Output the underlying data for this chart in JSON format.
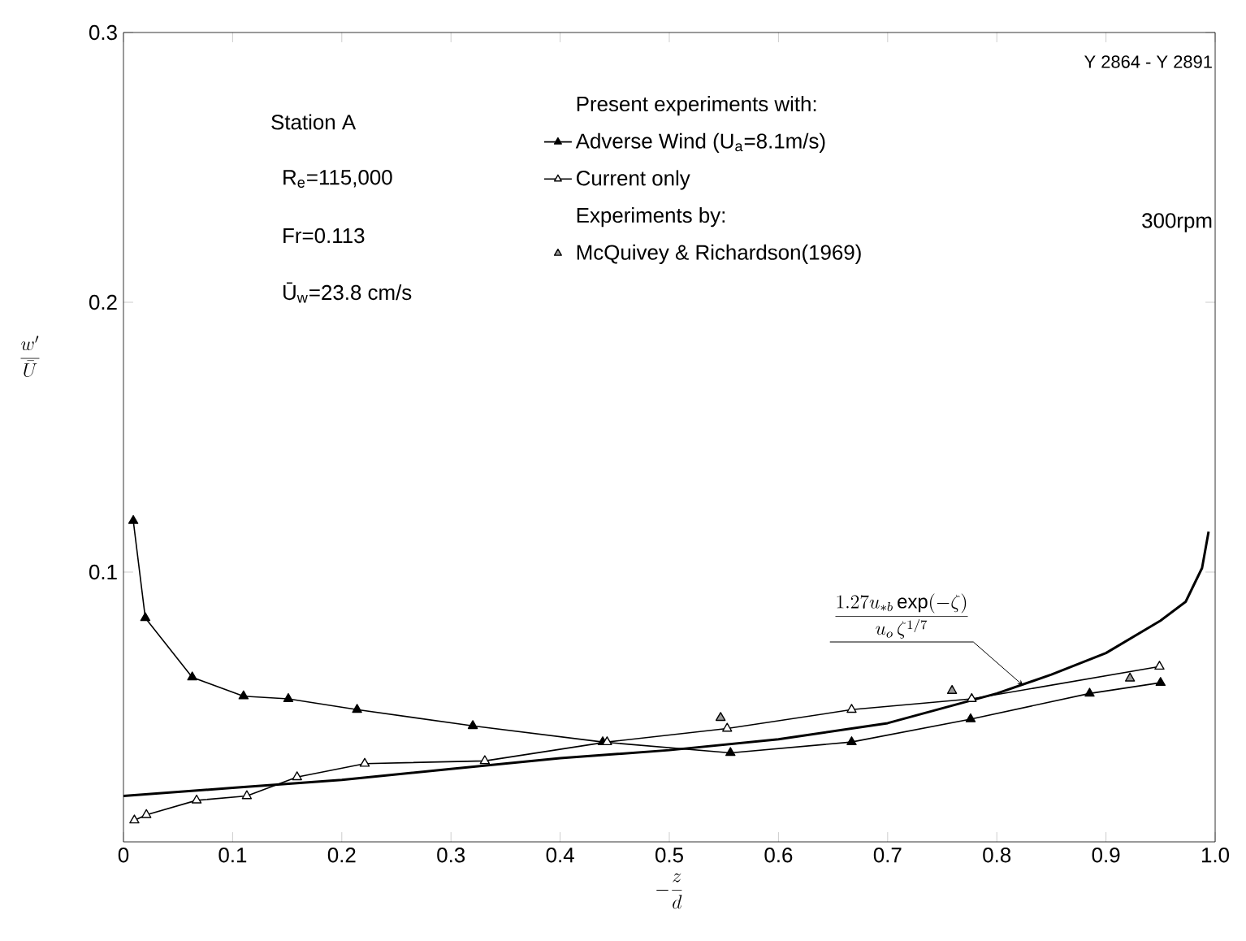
{
  "chart_data": {
    "type": "line",
    "xlabel": "-\\frac{z}{d}",
    "ylabel": "\\frac{w'}{\\bar{U}}",
    "xlim": [
      0,
      1.0
    ],
    "ylim": [
      0,
      0.3
    ],
    "xticks": [
      0,
      0.1,
      0.2,
      0.3,
      0.4,
      0.5,
      0.6,
      0.7,
      0.8,
      0.9,
      {
        "value": 1.0,
        "label": "1.0"
      }
    ],
    "yticks": [
      0.1,
      0.2,
      0.3
    ],
    "legend": "top right",
    "legend_title": "Present experiments with:",
    "grid": false,
    "series": [
      {
        "color": "#000000",
        "marker": "none",
        "x": [
          0,
          0.1,
          0.2,
          0.3,
          0.4,
          0.5,
          0.6,
          0.7,
          0.8,
          0.85,
          0.9,
          0.95,
          0.973,
          0.988,
          0.994
        ],
        "values": [
          0.017,
          0.02,
          0.023,
          0.027,
          0.031,
          0.034,
          0.038,
          0.044,
          0.055,
          0.062,
          0.07,
          0.082,
          0.089,
          0.1015,
          0.115
        ]
      },
      {
        "name": "Adverse Wind (U$_{a}$=8.1m/s)",
        "color": "#000000",
        "marker": "triangle",
        "x": [
          0.009,
          0.02,
          0.063,
          0.11,
          0.151,
          0.214,
          0.32,
          0.439,
          0.556,
          0.667,
          0.776,
          0.885,
          0.95
        ],
        "values": [
          0.119,
          0.083,
          0.061,
          0.054,
          0.053,
          0.049,
          0.043,
          0.037,
          0.033,
          0.037,
          0.0455,
          0.055,
          0.059
        ]
      },
      {
        "name": "Current only",
        "color": "#ffffff",
        "marker": "triangle",
        "x": [
          0.01,
          0.021,
          0.067,
          0.113,
          0.159,
          0.221,
          0.331,
          0.443,
          0.553,
          0.667,
          0.777,
          0.949
        ],
        "values": [
          0.008,
          0.01,
          0.0154,
          0.017,
          0.024,
          0.029,
          0.03,
          0.037,
          0.042,
          0.049,
          0.053,
          0.065
        ]
      },
      {
        "type": "scatter",
        "name": "McQuivey & Richardson(1969)",
        "color": "#999999",
        "marker": "triangle",
        "x": [
          0.547,
          0.759,
          0.922
        ],
        "values": [
          0.046,
          0.056,
          0.0606
        ]
      }
    ],
    "annotations": [
      "Y 2864 - Y 2891",
      "Station A",
      "R$_{e}$=115,000",
      "Fr=0.113",
      "Ū$_{w}$=23.8 cm/s",
      "300rpm",
      "Experiments by:",
      {
        "text": "\\frac{1.27u_{*b}\\exp(-\\zeta)}{u_o\\,\\zeta^{1/7}}",
        "x": 0.824,
        "y": 0.058
      }
    ]
  }
}
